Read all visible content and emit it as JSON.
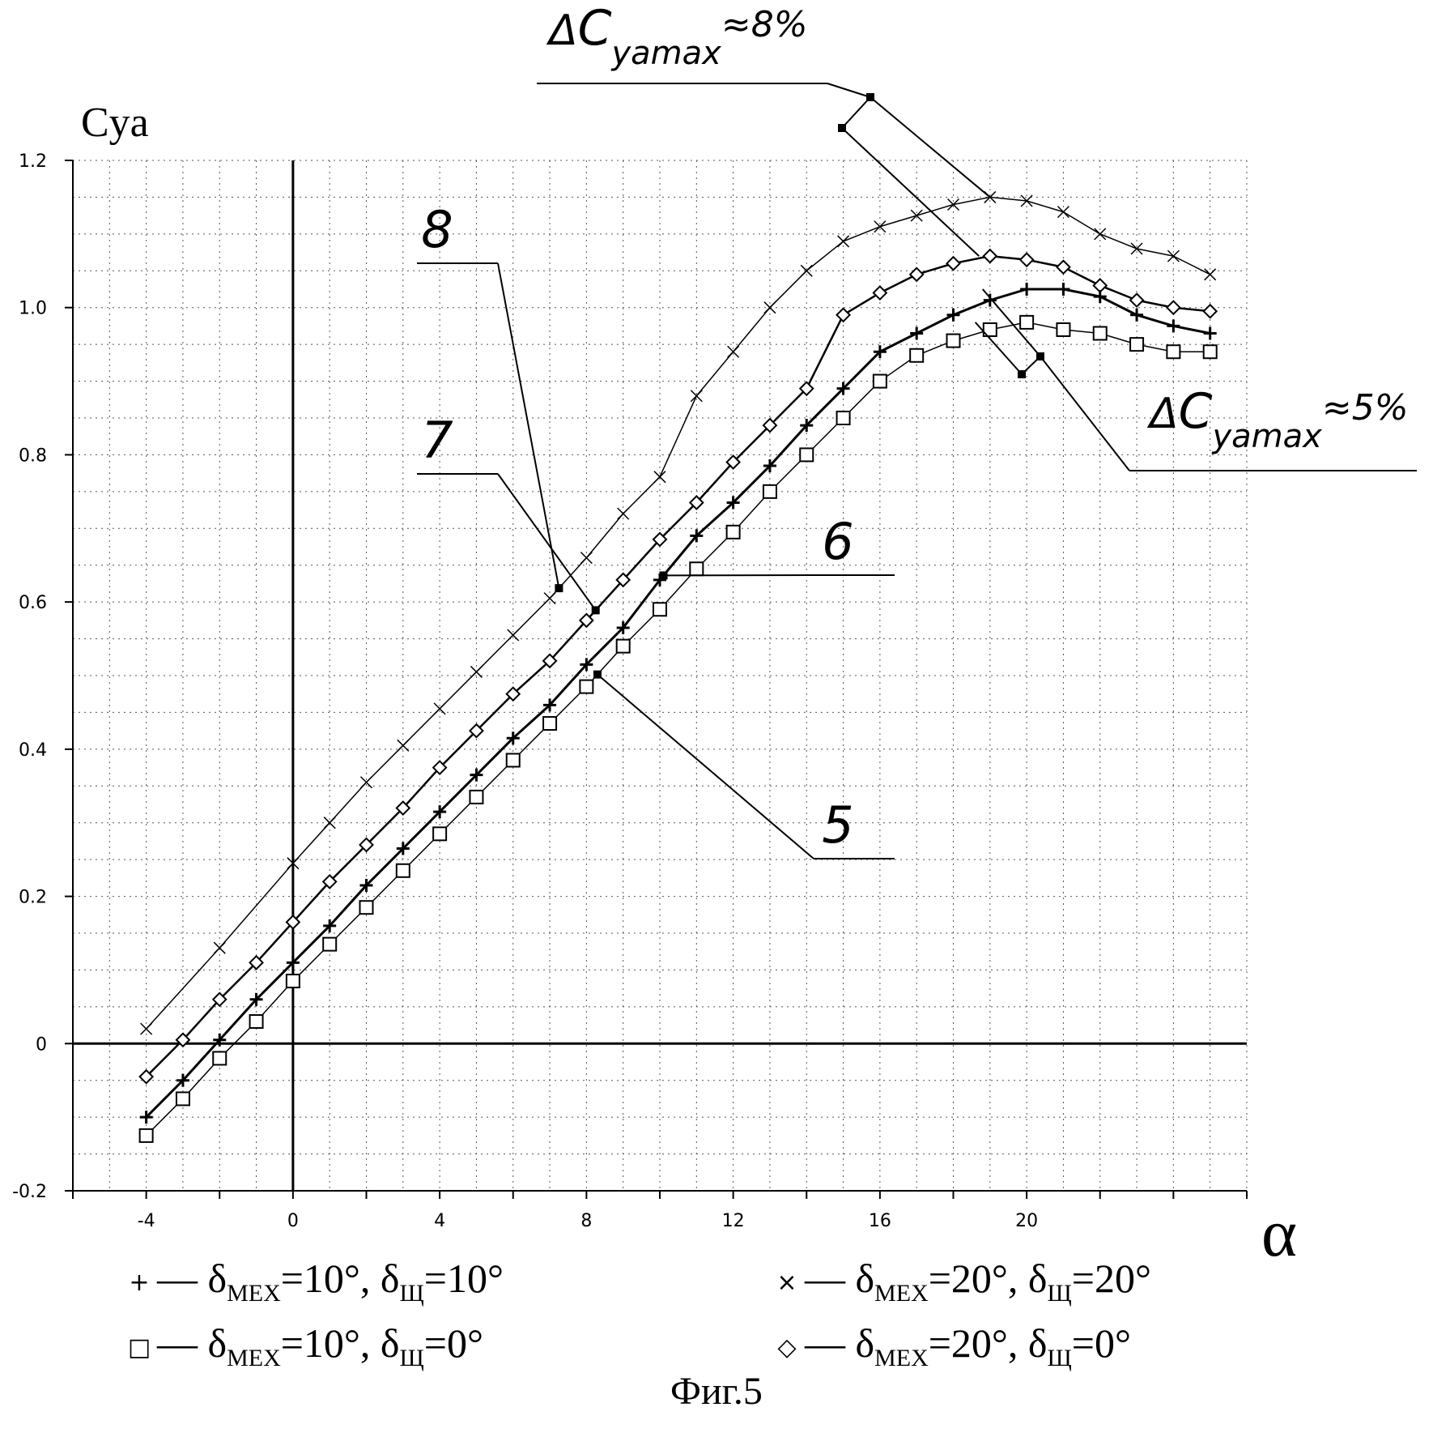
{
  "chart_data": {
    "type": "line",
    "title": "",
    "xlabel": "α",
    "ylabel": "Cya",
    "xlim": [
      -6,
      26
    ],
    "ylim": [
      -0.2,
      1.2
    ],
    "x_ticks": [
      -4,
      0,
      4,
      8,
      12,
      16,
      20
    ],
    "x_tick_labels": [
      "-4",
      "0",
      "4",
      "8",
      "12",
      "16",
      "20"
    ],
    "y_ticks": [
      -0.2,
      0,
      0.2,
      0.4,
      0.6,
      0.8,
      1.0,
      1.2
    ],
    "y_tick_labels": [
      "-0.2",
      "0",
      "0.2",
      "0.4",
      "0.6",
      "0.8",
      "1.0",
      "1.2"
    ],
    "grid": true,
    "series": [
      {
        "name": "δмех=20°, δщ=20°",
        "marker": "x",
        "curve_label": "8",
        "x": [
          -4,
          -2,
          0,
          1,
          2,
          3,
          4,
          5,
          6,
          7,
          8,
          9,
          10,
          11,
          12,
          13,
          14,
          15,
          16,
          17,
          18,
          19,
          20,
          21,
          22,
          23,
          24,
          25
        ],
        "y": [
          0.02,
          0.13,
          0.245,
          0.3,
          0.355,
          0.405,
          0.455,
          0.505,
          0.555,
          0.605,
          0.66,
          0.72,
          0.77,
          0.88,
          0.94,
          1.0,
          1.05,
          1.09,
          1.11,
          1.125,
          1.14,
          1.15,
          1.145,
          1.13,
          1.1,
          1.08,
          1.07,
          1.045
        ]
      },
      {
        "name": "δмех=20°, δщ=0°",
        "marker": "diamond",
        "curve_label": "7",
        "x": [
          -4,
          -3,
          -2,
          -1,
          0,
          1,
          2,
          3,
          4,
          5,
          6,
          7,
          8,
          9,
          10,
          11,
          12,
          13,
          14,
          15,
          16,
          17,
          18,
          19,
          20,
          21,
          22,
          23,
          24,
          25
        ],
        "y": [
          -0.045,
          0.005,
          0.06,
          0.11,
          0.165,
          0.22,
          0.27,
          0.32,
          0.375,
          0.425,
          0.475,
          0.52,
          0.575,
          0.63,
          0.685,
          0.735,
          0.79,
          0.84,
          0.89,
          0.99,
          1.02,
          1.045,
          1.06,
          1.07,
          1.065,
          1.055,
          1.03,
          1.01,
          1.0,
          0.995
        ]
      },
      {
        "name": "δмех=10°, δщ=10°",
        "marker": "plus",
        "curve_label": "6",
        "x": [
          -4,
          -3,
          -2,
          -1,
          0,
          1,
          2,
          3,
          4,
          5,
          6,
          7,
          8,
          9,
          10,
          11,
          12,
          13,
          14,
          15,
          16,
          17,
          18,
          19,
          20,
          21,
          22,
          23,
          24,
          25
        ],
        "y": [
          -0.1,
          -0.05,
          0.005,
          0.06,
          0.11,
          0.16,
          0.215,
          0.265,
          0.315,
          0.365,
          0.415,
          0.46,
          0.515,
          0.565,
          0.63,
          0.69,
          0.735,
          0.785,
          0.84,
          0.89,
          0.94,
          0.965,
          0.99,
          1.01,
          1.025,
          1.025,
          1.015,
          0.99,
          0.975,
          0.965
        ]
      },
      {
        "name": "δмех=10°, δщ=0°",
        "marker": "square",
        "curve_label": "5",
        "x": [
          -4,
          -3,
          -2,
          -1,
          0,
          1,
          2,
          3,
          4,
          5,
          6,
          7,
          8,
          9,
          10,
          11,
          12,
          13,
          14,
          15,
          16,
          17,
          18,
          19,
          20,
          21,
          22,
          23,
          24,
          25
        ],
        "y": [
          -0.125,
          -0.075,
          -0.02,
          0.03,
          0.085,
          0.135,
          0.185,
          0.235,
          0.285,
          0.335,
          0.385,
          0.435,
          0.485,
          0.54,
          0.59,
          0.645,
          0.695,
          0.75,
          0.8,
          0.85,
          0.9,
          0.935,
          0.955,
          0.97,
          0.98,
          0.97,
          0.965,
          0.95,
          0.94,
          0.94
        ]
      }
    ],
    "annotations": [
      {
        "text_prefix": "Δ",
        "text_c": "C",
        "text_sub": "yamax",
        "text_suffix": "≈8%"
      },
      {
        "text_prefix": "Δ",
        "text_c": "C",
        "text_sub": "yamax",
        "text_suffix": "≈5%"
      }
    ]
  },
  "legend": {
    "items": [
      {
        "marker": "+",
        "dash": "—",
        "pre": "δ",
        "sub1": "МЕХ",
        "mid": "=10°, δ",
        "sub2": "Щ",
        "post": "=10°"
      },
      {
        "marker": "×",
        "dash": "—",
        "pre": "δ",
        "sub1": "МЕХ",
        "mid": "=20°, δ",
        "sub2": "Щ",
        "post": "=20°"
      },
      {
        "marker": "□",
        "dash": "—",
        "pre": "δ",
        "sub1": "МЕХ",
        "mid": "=10°, δ",
        "sub2": "Щ",
        "post": "=0°"
      },
      {
        "marker": "◇",
        "dash": "—",
        "pre": "δ",
        "sub1": "МЕХ",
        "mid": "=20°, δ",
        "sub2": "Щ",
        "post": "=0°"
      }
    ]
  },
  "caption": "Фиг.5"
}
